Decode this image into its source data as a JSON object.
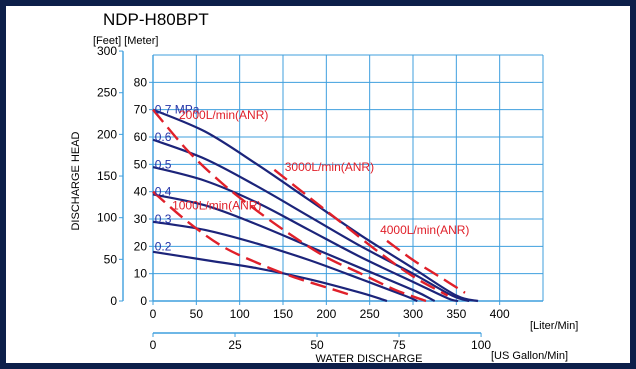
{
  "chart_data": {
    "type": "line",
    "title": "NDP-H80BPT",
    "units_label": "[Feet] [Meter]",
    "ylabel": "DISCHARGE HEAD",
    "xlabel": "WATER DISCHARGE",
    "x_unit_primary": "[Liter/Min]",
    "x_unit_secondary": "[US Gallon/Min]",
    "x_primary_ticks": [
      "0",
      "50",
      "100",
      "150",
      "200",
      "250",
      "300",
      "350",
      "400"
    ],
    "x_secondary_ticks": [
      "0",
      "25",
      "50",
      "75",
      "100"
    ],
    "y_meter_ticks": [
      "0",
      "10",
      "20",
      "30",
      "40",
      "50",
      "60",
      "70",
      "80"
    ],
    "y_feet_ticks": [
      "0",
      "50",
      "100",
      "150",
      "200",
      "250",
      "300"
    ],
    "xlim": [
      0,
      450
    ],
    "ylim": [
      0,
      90
    ],
    "grid": true,
    "pressure_curves": [
      {
        "name": "0.7 MPa",
        "points": [
          [
            0,
            70
          ],
          [
            60,
            62
          ],
          [
            120,
            50
          ],
          [
            180,
            37
          ],
          [
            240,
            24
          ],
          [
            300,
            12
          ],
          [
            350,
            2
          ],
          [
            375,
            0
          ]
        ]
      },
      {
        "name": "0.6",
        "points": [
          [
            0,
            59
          ],
          [
            60,
            52
          ],
          [
            120,
            42
          ],
          [
            180,
            31
          ],
          [
            240,
            20
          ],
          [
            300,
            10
          ],
          [
            345,
            2
          ],
          [
            365,
            0
          ]
        ]
      },
      {
        "name": "0.5",
        "points": [
          [
            0,
            49
          ],
          [
            60,
            44
          ],
          [
            120,
            36
          ],
          [
            180,
            26
          ],
          [
            240,
            16
          ],
          [
            300,
            7
          ],
          [
            340,
            1
          ],
          [
            352,
            0
          ]
        ]
      },
      {
        "name": "0.4",
        "points": [
          [
            0,
            39
          ],
          [
            60,
            35
          ],
          [
            120,
            28
          ],
          [
            180,
            20
          ],
          [
            240,
            12
          ],
          [
            300,
            4
          ],
          [
            325,
            0
          ]
        ]
      },
      {
        "name": "0.3",
        "points": [
          [
            0,
            29
          ],
          [
            60,
            26
          ],
          [
            120,
            21
          ],
          [
            180,
            15
          ],
          [
            240,
            8
          ],
          [
            290,
            2
          ],
          [
            305,
            0
          ]
        ]
      },
      {
        "name": "0.2",
        "points": [
          [
            0,
            18
          ],
          [
            60,
            15
          ],
          [
            120,
            12
          ],
          [
            180,
            8
          ],
          [
            240,
            3
          ],
          [
            270,
            0
          ]
        ]
      }
    ],
    "air_consumption_curves": [
      {
        "name": "1000L/min(ANR)",
        "points": [
          [
            0,
            40
          ],
          [
            40,
            29
          ],
          [
            80,
            20
          ],
          [
            120,
            14
          ],
          [
            160,
            9
          ],
          [
            200,
            5
          ],
          [
            230,
            2
          ]
        ]
      },
      {
        "name": "2000L/min(ANR)",
        "points": [
          [
            0,
            70
          ],
          [
            40,
            55
          ],
          [
            80,
            43
          ],
          [
            120,
            33
          ],
          [
            160,
            24
          ],
          [
            200,
            16
          ],
          [
            240,
            10
          ],
          [
            280,
            4
          ],
          [
            315,
            0
          ]
        ]
      },
      {
        "name": "3000L/min(ANR)",
        "points": [
          [
            140,
            48
          ],
          [
            180,
            38
          ],
          [
            220,
            28
          ],
          [
            260,
            18
          ],
          [
            300,
            9
          ],
          [
            340,
            2
          ]
        ]
      },
      {
        "name": "4000L/min(ANR)",
        "points": [
          [
            270,
            22
          ],
          [
            300,
            15
          ],
          [
            330,
            9
          ],
          [
            360,
            3
          ]
        ]
      }
    ],
    "pressure_labels": [
      {
        "text": "0.7 MPa",
        "x": 2,
        "y": 70
      },
      {
        "text": "0.6",
        "x": 2,
        "y": 60
      },
      {
        "text": "0.5",
        "x": 2,
        "y": 50
      },
      {
        "text": "0.4",
        "x": 2,
        "y": 40
      },
      {
        "text": "0.3",
        "x": 2,
        "y": 30
      },
      {
        "text": "0.2",
        "x": 2,
        "y": 20
      }
    ],
    "air_labels": [
      {
        "text": "2000L/min(ANR)",
        "x": 30,
        "y": 68
      },
      {
        "text": "3000L/min(ANR)",
        "x": 152,
        "y": 49
      },
      {
        "text": "1000L/min(ANR)",
        "x": 22,
        "y": 35
      },
      {
        "text": "4000L/min(ANR)",
        "x": 262,
        "y": 26
      }
    ],
    "colors": {
      "grid": "#3f9fde",
      "pressure": "#1c247a",
      "air": "#e0202a",
      "label_blue": "#2535a8",
      "axis_text": "#000000"
    }
  }
}
